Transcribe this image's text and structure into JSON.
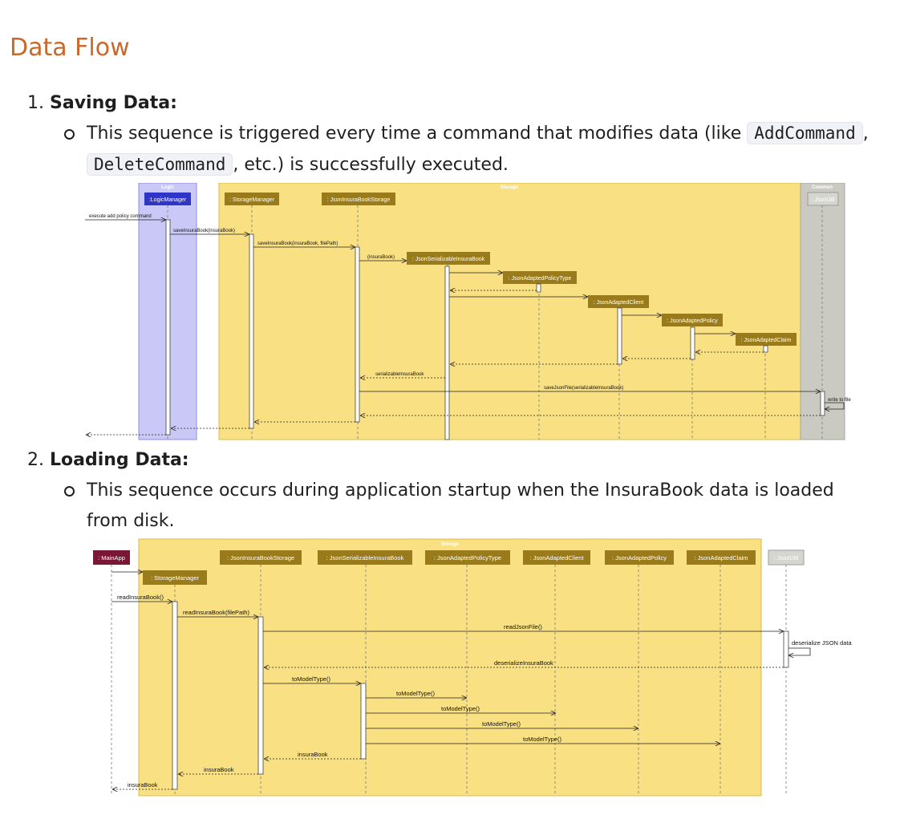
{
  "heading": "Data Flow",
  "saving": {
    "number": "1.",
    "title": "Saving Data:",
    "text_a": "This sequence is triggered every time a command that modifies data (like",
    "code_a": "AddCommand",
    "comma": ",",
    "code_b": "DeleteCommand",
    "text_b": ", etc.) is successfully executed."
  },
  "loading": {
    "number": "2.",
    "title": "Loading Data:",
    "text_a": "This sequence occurs during application startup when the InsuraBook data is loaded",
    "text_b": "from disk."
  },
  "colors": {
    "logic_box": "#c9c8f6",
    "storage_box": "#f9e082",
    "common_box": "#cacac3",
    "participant": "#9a7b1b",
    "logic_participant": "#2f35c7",
    "mainapp": "#7a1737"
  },
  "diagram1": {
    "groups": {
      "logic": "Logic",
      "storage": "Storage",
      "common": "Common"
    },
    "participants": {
      "logic_manager": ":LogicManager",
      "storage_manager": ": StorageManager",
      "json_storage": ": JsonInsuraBookStorage",
      "json_serializable": ": JsonSerializableInsuraBook",
      "policy_type": ": JsonAdaptedPolicyType",
      "client": ": JsonAdaptedClient",
      "policy": ": JsonAdaptedPolicy",
      "claim": ": JsonAdaptedClaim",
      "json_util": ": JsonUtil"
    },
    "messages": {
      "m1": "execute add policy command",
      "m2": "saveInsuraBook(insuraBook)",
      "m3": "saveInsuraBook(insuraBook, filePath)",
      "m4": "(insuraBook)",
      "m5": "serializableInsuraBook",
      "m6": "saveJsonFile(serializableInsuraBook)",
      "m7": "write to file"
    }
  },
  "diagram2": {
    "groups": {
      "storage": "Storage"
    },
    "participants": {
      "main_app": ": MainApp",
      "storage_manager": ": StorageManager",
      "json_storage": ": JsonInsuraBookStorage",
      "json_serializable": ": JsonSerializableInsuraBook",
      "policy_type": ": JsonAdaptedPolicyType",
      "client": ": JsonAdaptedClient",
      "policy": ": JsonAdaptedPolicy",
      "claim": ": JsonAdaptedClaim",
      "json_util": ": JsonUtil"
    },
    "messages": {
      "m1": "readInsuraBook()",
      "m2": "readInsuraBook(filePath)",
      "m3": "readJsonFile()",
      "m4": "deserialize JSON data",
      "m5": "deserializeInsuraBook",
      "m6": "toModelType()",
      "m7": "toModelType()",
      "m8": "toModelType()",
      "m9": "toModelType()",
      "m10": "toModelType()",
      "m11": "insuraBook",
      "m12": "insuraBook",
      "m13": "insuraBook"
    }
  }
}
